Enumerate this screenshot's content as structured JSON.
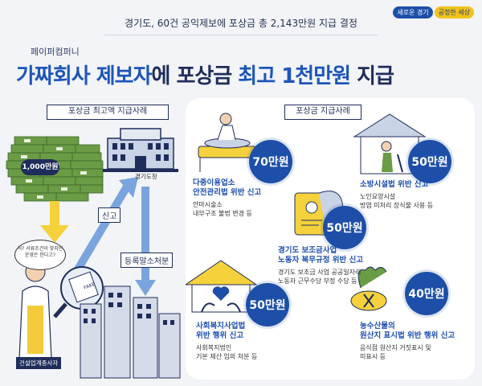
{
  "brand": {
    "left": "새로운 경기",
    "right": "공정한 세상"
  },
  "topline": "경기도, 60건 공익제보에 포상금 총 2,143만원 지급 결정",
  "company": "페이퍼컴퍼니",
  "headline": {
    "a": "가짜회사 제보자",
    "b": "에 포상금 ",
    "c": "최고 1천만원",
    "d": " 지급"
  },
  "left_section": {
    "label": "포상금 최고액 지급사례",
    "money_label": "1,000만원",
    "building_label": "경기도청",
    "arrow_report": "신고",
    "arrow_dispose": "등록말소처분",
    "bubble": "어? 서류조건이 맞지만 운영은 한다고?",
    "magnifier_text": "FAKE",
    "worker_label": "건설업계종사자"
  },
  "right_section": {
    "label": "포상금 지급사례",
    "cases": [
      {
        "amount": "70만원",
        "title": [
          "다중이용업소",
          "안전관리법 위반 신고"
        ],
        "desc": [
          "안마시술소",
          "내부구조 불법 변경 등"
        ]
      },
      {
        "amount": "50만원",
        "title": [
          "소방시설법 위반 신고"
        ],
        "desc": [
          "노인요양시설",
          "방염 미처리 장식물 사용 등"
        ]
      },
      {
        "amount": "50만원",
        "title": [
          "경기도 보조금사업",
          "노동자 복무규정 위반 신고"
        ],
        "desc": [
          "경기도 보조금 사업 공공일자리",
          "노동자 근무수당 부정 수당 등"
        ]
      },
      {
        "amount": "50만원",
        "title": [
          "사회복지사업법",
          "위반 행위 신고"
        ],
        "desc": [
          "사회복지법인",
          "기본 재산 임의 처분 등"
        ]
      },
      {
        "amount": "40만원",
        "title": [
          "농수산물의",
          "원산지 표시법 위반 행위 신고"
        ],
        "desc": [
          "음식점 원산지 거짓표시 및",
          "미표시 등"
        ]
      }
    ]
  },
  "colors": {
    "accent": "#1d4fa8",
    "navy": "#1f2d5a",
    "yellow": "#f1c21b",
    "green": "#3f8a3a"
  }
}
